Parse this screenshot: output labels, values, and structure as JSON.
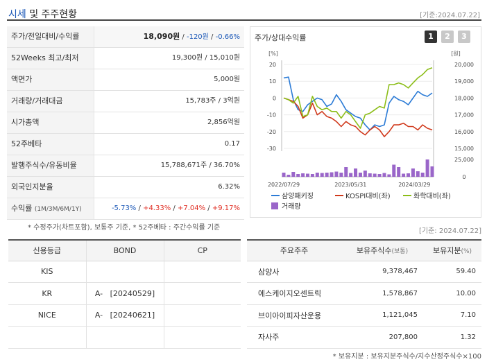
{
  "header": {
    "title_accent": "시세",
    "title_rest": " 및 주주현황",
    "date": "[기준:2024.07.22]"
  },
  "quote": {
    "rows": [
      {
        "label": "주가/전일대비/수익률",
        "price": "18,090원",
        "change": "-120원",
        "rate": "-0.66%"
      },
      {
        "label": "52Weeks 최고/최저",
        "value": "19,300원 / 15,010원"
      },
      {
        "label": "액면가",
        "value": "5,000원"
      },
      {
        "label": "거래량/거래대금",
        "value": "15,783주 / 3억원"
      },
      {
        "label": "시가총액",
        "value": "2,856억원"
      },
      {
        "label": "52주베타",
        "value": "0.17"
      },
      {
        "label": "발행주식수/유동비율",
        "value": "15,788,671주 / 36.70%"
      },
      {
        "label": "외국인지분율",
        "value": "6.32%"
      },
      {
        "label": "수익률",
        "label_sub": "(1M/3M/6M/1Y)",
        "r1": "-5.73%",
        "r2": "+4.33%",
        "r3": "+7.04%",
        "r4": "+9.17%"
      }
    ],
    "note": "* 수정주가(차트포함), 보통주 기준, * 52주베타 : 주간수익률 기준"
  },
  "chart_panel": {
    "title": "주가/상대수익률",
    "buttons": [
      "1",
      "2",
      "3"
    ],
    "active_button": "1",
    "legend": [
      "삼양패키징",
      "KOSPI대비(좌)",
      "화학대비(좌)",
      "거래량"
    ]
  },
  "chart_data": {
    "type": "line",
    "x_ticks": [
      "2022/07/29",
      "2023/05/31",
      "2024/03/29"
    ],
    "left_axis": {
      "unit": "[%]",
      "ticks": [
        "20",
        "10",
        "0",
        "-10",
        "-20",
        "-30"
      ],
      "range": [
        -30,
        20
      ]
    },
    "right_axis": {
      "unit": "[원]",
      "ticks": [
        "20,000",
        "19,000",
        "18,000",
        "17,000",
        "16,000",
        "15,000"
      ],
      "range": [
        15000,
        20000
      ]
    },
    "volume_axis": {
      "ticks": [
        "25,000",
        "0"
      ],
      "range": [
        0,
        25000
      ]
    },
    "series": [
      {
        "name": "삼양패키징",
        "color": "#2b7bd6",
        "axis": "right",
        "values": [
          19200,
          19250,
          17900,
          17300,
          17200,
          17600,
          17800,
          18000,
          17900,
          17500,
          17650,
          18200,
          17800,
          17300,
          17100,
          16900,
          16800,
          16400,
          16100,
          16400,
          16300,
          16400,
          17700,
          18100,
          17900,
          17800,
          17600,
          18000,
          18400,
          18200,
          18100,
          18300
        ]
      },
      {
        "name": "KOSPI대비(좌)",
        "color": "#d0391c",
        "axis": "left",
        "values": [
          0,
          -1,
          -2,
          -5,
          -12,
          -10,
          -3,
          -10,
          -8,
          -11,
          -12,
          -14,
          -17,
          -14,
          -16,
          -17,
          -20,
          -22,
          -19,
          -17,
          -19,
          -23,
          -20,
          -16,
          -16,
          -15,
          -17,
          -17,
          -19,
          -16,
          -18,
          -19
        ]
      },
      {
        "name": "화학대비(좌)",
        "color": "#8bbd17",
        "axis": "left",
        "values": [
          0,
          -1,
          -3,
          1,
          -11,
          -10,
          1,
          -5,
          -7,
          -6,
          -8,
          -8,
          -12,
          -8,
          -10,
          -14,
          -18,
          -10,
          -9,
          -7,
          -5,
          -6,
          8,
          8,
          9,
          8,
          6,
          9,
          12,
          14,
          17,
          18
        ]
      },
      {
        "name": "거래량",
        "color": "#9a66c9",
        "axis": "volume",
        "values": [
          6000,
          3000,
          7000,
          4000,
          5000,
          4500,
          4000,
          6000,
          5500,
          6000,
          6500,
          7500,
          6000,
          14000,
          5500,
          12000,
          6000,
          9000,
          5000,
          4500,
          4000,
          5500,
          3500,
          17500,
          14000,
          4500,
          5000,
          12000,
          8000,
          6000,
          25000,
          15000
        ]
      }
    ]
  },
  "date2": "[기준: 2024.07.22]",
  "credit": {
    "headers": [
      "신용등급",
      "BOND",
      "CP"
    ],
    "rows": [
      [
        "KIS",
        "",
        ""
      ],
      [
        "KR",
        "A-   [20240529]",
        ""
      ],
      [
        "NICE",
        "A-   [20240621]",
        ""
      ],
      [
        "",
        "",
        ""
      ]
    ]
  },
  "holders": {
    "headers": [
      "주요주주",
      "보유주식수",
      "(보통)",
      "보유지분",
      "(%)"
    ],
    "rows": [
      [
        "삼양사",
        "9,378,467",
        "59.40"
      ],
      [
        "에스케이지오센트릭",
        "1,578,867",
        "10.00"
      ],
      [
        "브이아이피자산운용",
        "1,121,045",
        "7.10"
      ],
      [
        "자사주",
        "207,800",
        "1.32"
      ]
    ],
    "note": "* 보유지분 : 보유지분주식수/지수산정주식수×100"
  }
}
